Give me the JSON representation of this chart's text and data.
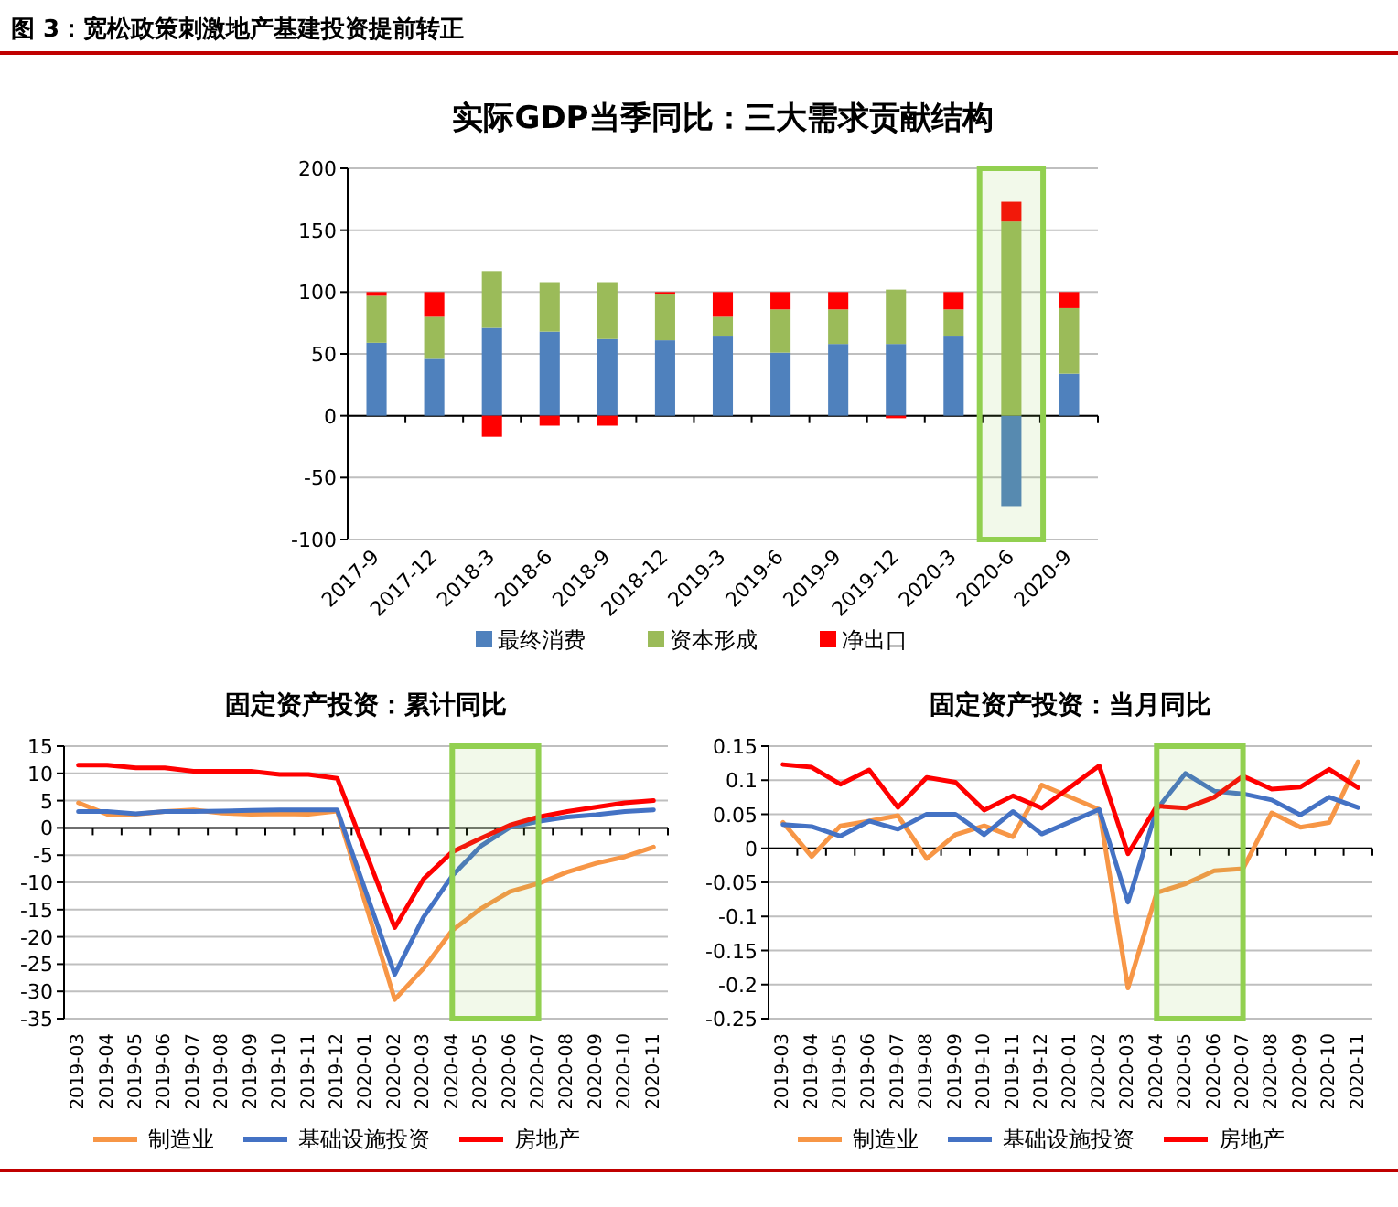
{
  "chart_data": [
    {
      "type": "bar",
      "title": "实际GDP当季同比：三大需求贡献结构",
      "annotations": [
        "图 3：宽松政策刺激地产基建投资提前转正"
      ],
      "categories": [
        "2017-9",
        "2017-12",
        "2018-3",
        "2018-6",
        "2018-9",
        "2018-12",
        "2019-3",
        "2019-6",
        "2019-9",
        "2019-12",
        "2020-3",
        "2020-6",
        "2020-9"
      ],
      "stacked": true,
      "series": [
        {
          "name": "最终消费",
          "color": "#4f81bd",
          "values": [
            59,
            46,
            71,
            68,
            62,
            61,
            64,
            51,
            58,
            58,
            64,
            -73,
            34
          ]
        },
        {
          "name": "资本形成",
          "color": "#9bbb59",
          "values": [
            38,
            34,
            46,
            40,
            46,
            37,
            16,
            35,
            28,
            44,
            22,
            157,
            53
          ]
        },
        {
          "name": "净出口",
          "color": "#ff0000",
          "values": [
            3,
            20,
            -17,
            -8,
            -8,
            2,
            20,
            14,
            14,
            -2,
            14,
            16,
            13
          ]
        }
      ],
      "ylim": [
        -100,
        200
      ],
      "yticks": [
        -100,
        -50,
        0,
        50,
        100,
        150,
        200
      ],
      "grid": "y",
      "legend": "bottom",
      "bands": [
        {
          "axis": "x",
          "from": "2020-6",
          "to": "2020-6",
          "color": "#92d050"
        }
      ]
    },
    {
      "type": "line",
      "title": "固定资产投资：累计同比",
      "categories": [
        "2019-03",
        "2019-04",
        "2019-05",
        "2019-06",
        "2019-07",
        "2019-08",
        "2019-09",
        "2019-10",
        "2019-11",
        "2019-12",
        "2020-01",
        "2020-02",
        "2020-03",
        "2020-04",
        "2020-05",
        "2020-06",
        "2020-07",
        "2020-08",
        "2020-09",
        "2020-10",
        "2020-11"
      ],
      "series": [
        {
          "name": "制造业",
          "color": "#f79646",
          "values": [
            4.6,
            2.5,
            2.5,
            3.0,
            3.3,
            2.7,
            2.5,
            2.6,
            2.5,
            3.1,
            null,
            -31.5,
            -25.8,
            -18.8,
            -14.8,
            -11.7,
            -10.2,
            -8.1,
            -6.5,
            -5.3,
            -3.5
          ]
        },
        {
          "name": "基础设施投资",
          "color": "#4472c4",
          "values": [
            3.0,
            3.0,
            2.6,
            3.0,
            3.0,
            3.1,
            3.2,
            3.3,
            3.3,
            3.3,
            null,
            -26.9,
            -16.4,
            -8.8,
            -3.3,
            0.1,
            1.2,
            2.0,
            2.4,
            3.0,
            3.3
          ]
        },
        {
          "name": "房地产",
          "color": "#ff0000",
          "values": [
            11.5,
            11.5,
            11.0,
            11.0,
            10.4,
            10.4,
            10.4,
            9.8,
            9.8,
            9.1,
            null,
            -18.3,
            -9.4,
            -4.4,
            -1.9,
            0.5,
            2.0,
            3.0,
            3.8,
            4.6,
            5.0
          ]
        }
      ],
      "ylim": [
        -35,
        15
      ],
      "yticks": [
        -35,
        -30,
        -25,
        -20,
        -15,
        -10,
        -5,
        0,
        5,
        10,
        15
      ],
      "grid": "y",
      "legend": "bottom",
      "bands": [
        {
          "axis": "x",
          "from": "2020-04",
          "to": "2020-07",
          "color": "#92d050"
        }
      ]
    },
    {
      "type": "line",
      "title": "固定资产投资：当月同比",
      "categories": [
        "2019-03",
        "2019-04",
        "2019-05",
        "2019-06",
        "2019-07",
        "2019-08",
        "2019-09",
        "2019-10",
        "2019-11",
        "2019-12",
        "2020-01",
        "2020-02",
        "2020-03",
        "2020-04",
        "2020-05",
        "2020-06",
        "2020-07",
        "2020-08",
        "2020-09",
        "2020-10",
        "2020-11"
      ],
      "series": [
        {
          "name": "制造业",
          "color": "#f79646",
          "values": [
            0.038,
            -0.012,
            0.033,
            0.04,
            0.048,
            -0.015,
            0.02,
            0.033,
            0.017,
            0.093,
            null,
            0.057,
            -0.205,
            -0.065,
            -0.052,
            -0.033,
            -0.03,
            0.052,
            0.031,
            0.038,
            0.127
          ]
        },
        {
          "name": "基础设施投资",
          "color": "#4472c4",
          "values": [
            0.035,
            0.032,
            0.018,
            0.04,
            0.028,
            0.05,
            0.05,
            0.02,
            0.054,
            0.021,
            null,
            0.057,
            -0.079,
            0.057,
            0.11,
            0.084,
            0.08,
            0.071,
            0.049,
            0.075,
            0.06
          ]
        },
        {
          "name": "房地产",
          "color": "#ff0000",
          "values": [
            0.123,
            0.119,
            0.094,
            0.115,
            0.06,
            0.104,
            0.097,
            0.056,
            0.077,
            0.059,
            null,
            0.121,
            -0.008,
            0.062,
            0.059,
            0.075,
            0.106,
            0.087,
            0.09,
            0.116,
            0.089
          ]
        }
      ],
      "ylim": [
        -0.25,
        0.15
      ],
      "yticks": [
        -0.25,
        -0.2,
        -0.15,
        -0.1,
        -0.05,
        0,
        0.05,
        0.1,
        0.15
      ],
      "grid": "y",
      "legend": "bottom",
      "bands": [
        {
          "axis": "x",
          "from": "2020-04",
          "to": "2020-07",
          "color": "#92d050"
        }
      ]
    }
  ]
}
